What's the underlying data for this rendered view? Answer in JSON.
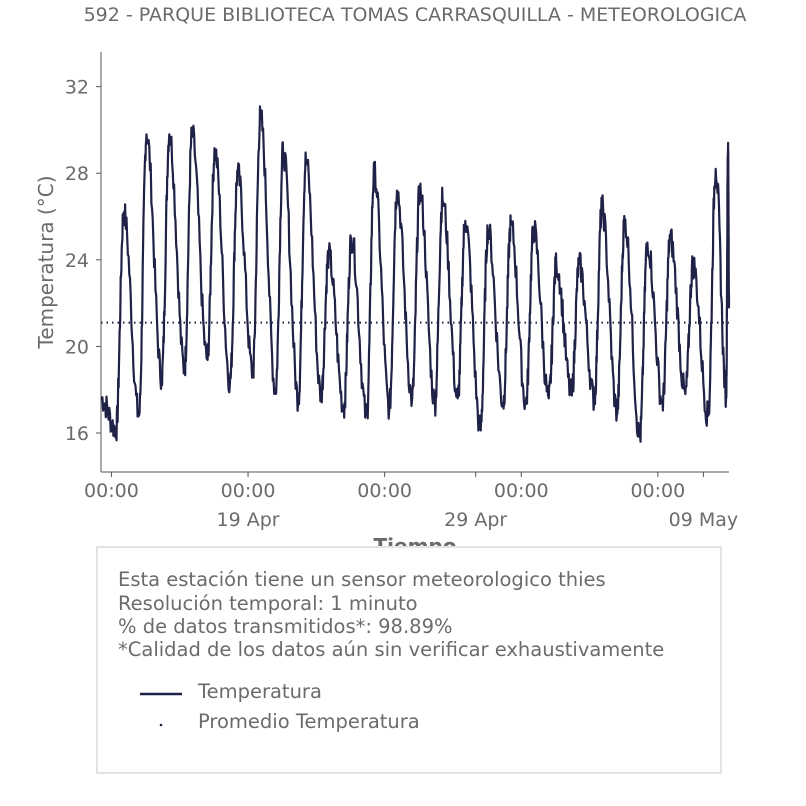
{
  "chart_data": {
    "type": "line",
    "title": "592 - PARQUE BIBLIOTECA TOMAS CARRASQUILLA - METEOROLOGICA",
    "xlabel": "Tiempo",
    "ylabel": "Temperatura (°C)",
    "ylim": [
      14.2,
      33.6
    ],
    "yticks": [
      16,
      20,
      24,
      28,
      32
    ],
    "x_range": [
      "2021-04-12T13:00",
      "2021-05-10T03:00"
    ],
    "x_tick_labels": [
      {
        "x": "2021-04-13T00:00",
        "time": "00:00",
        "date": ""
      },
      {
        "x": "2021-04-19T00:00",
        "time": "00:00",
        "date": "19 Apr"
      },
      {
        "x": "2021-04-25T00:00",
        "time": "00:00",
        "date": ""
      },
      {
        "x": "2021-04-29T00:00",
        "time": "",
        "date": "29 Apr"
      },
      {
        "x": "2021-05-01T00:00",
        "time": "00:00",
        "date": ""
      },
      {
        "x": "2021-05-07T00:00",
        "time": "00:00",
        "date": ""
      },
      {
        "x": "2021-05-09T00:00",
        "time": "",
        "date": "09 May"
      }
    ],
    "grid": false,
    "series": [
      {
        "name": "Temperatura",
        "style": "solid",
        "color": "#1f2147",
        "daily_peaks": [
          {
            "x": "2021-04-13T13:00",
            "y": 26.2
          },
          {
            "x": "2021-04-14T13:00",
            "y": 29.8
          },
          {
            "x": "2021-04-15T13:00",
            "y": 29.8
          },
          {
            "x": "2021-04-16T13:00",
            "y": 29.8
          },
          {
            "x": "2021-04-17T13:00",
            "y": 29.0
          },
          {
            "x": "2021-04-18T13:00",
            "y": 28.0
          },
          {
            "x": "2021-04-19T13:00",
            "y": 30.6
          },
          {
            "x": "2021-04-20T13:00",
            "y": 29.0
          },
          {
            "x": "2021-04-21T13:00",
            "y": 28.6
          },
          {
            "x": "2021-04-22T13:00",
            "y": 24.2
          },
          {
            "x": "2021-04-23T13:00",
            "y": 25.0
          },
          {
            "x": "2021-04-24T13:00",
            "y": 28.0
          },
          {
            "x": "2021-04-25T13:00",
            "y": 27.2
          },
          {
            "x": "2021-04-26T13:00",
            "y": 27.2
          },
          {
            "x": "2021-04-27T13:00",
            "y": 26.8
          },
          {
            "x": "2021-04-28T13:00",
            "y": 25.8
          },
          {
            "x": "2021-04-29T13:00",
            "y": 25.4
          },
          {
            "x": "2021-04-30T13:00",
            "y": 25.6
          },
          {
            "x": "2021-05-01T13:00",
            "y": 25.4
          },
          {
            "x": "2021-05-02T13:00",
            "y": 23.8
          },
          {
            "x": "2021-05-03T13:00",
            "y": 23.8
          },
          {
            "x": "2021-05-04T13:00",
            "y": 26.4
          },
          {
            "x": "2021-05-05T13:00",
            "y": 25.8
          },
          {
            "x": "2021-05-06T13:00",
            "y": 24.8
          },
          {
            "x": "2021-05-07T13:00",
            "y": 25.0
          },
          {
            "x": "2021-05-08T13:00",
            "y": 23.8
          },
          {
            "x": "2021-05-09T13:00",
            "y": 28.2
          },
          {
            "x": "2021-05-10T02:00",
            "y": 29.4
          }
        ],
        "daily_minima": [
          {
            "x": "2021-04-13T05:00",
            "y": 16.2
          },
          {
            "x": "2021-04-14T05:00",
            "y": 16.8
          },
          {
            "x": "2021-04-15T05:00",
            "y": 18.6
          },
          {
            "x": "2021-04-16T05:00",
            "y": 19.0
          },
          {
            "x": "2021-04-17T05:00",
            "y": 19.4
          },
          {
            "x": "2021-04-18T05:00",
            "y": 18.4
          },
          {
            "x": "2021-04-19T05:00",
            "y": 18.8
          },
          {
            "x": "2021-04-20T05:00",
            "y": 18.0
          },
          {
            "x": "2021-04-21T05:00",
            "y": 17.6
          },
          {
            "x": "2021-04-22T05:00",
            "y": 17.8
          },
          {
            "x": "2021-04-23T05:00",
            "y": 17.2
          },
          {
            "x": "2021-04-24T05:00",
            "y": 16.8
          },
          {
            "x": "2021-04-25T05:00",
            "y": 17.2
          },
          {
            "x": "2021-04-26T05:00",
            "y": 17.6
          },
          {
            "x": "2021-04-27T05:00",
            "y": 17.4
          },
          {
            "x": "2021-04-28T05:00",
            "y": 17.6
          },
          {
            "x": "2021-04-29T05:00",
            "y": 16.2
          },
          {
            "x": "2021-04-30T05:00",
            "y": 17.4
          },
          {
            "x": "2021-05-01T05:00",
            "y": 17.4
          },
          {
            "x": "2021-05-02T05:00",
            "y": 17.6
          },
          {
            "x": "2021-05-03T05:00",
            "y": 17.8
          },
          {
            "x": "2021-05-04T05:00",
            "y": 17.6
          },
          {
            "x": "2021-05-05T05:00",
            "y": 17.0
          },
          {
            "x": "2021-05-06T05:00",
            "y": 15.8
          },
          {
            "x": "2021-05-07T05:00",
            "y": 17.4
          },
          {
            "x": "2021-05-08T05:00",
            "y": 17.8
          },
          {
            "x": "2021-05-09T05:00",
            "y": 16.8
          },
          {
            "x": "2021-05-10T00:00",
            "y": 17.8
          }
        ]
      },
      {
        "name": "Promedio Temperatura",
        "style": "dotted",
        "color": "#1f2147",
        "y": 21.1
      }
    ]
  },
  "info": {
    "line1": "Esta estación tiene un sensor meteorologico thies",
    "line2": "Resolución temporal: 1 minuto",
    "line3": "% de datos transmitidos*: 98.89%",
    "line4": "*Calidad de los datos aún sin verificar exhaustivamente"
  },
  "legend": {
    "item1": "Temperatura",
    "item2": "Promedio Temperatura"
  },
  "colors": {
    "series": "#1f2147",
    "text": "#6b6b6b",
    "axis": "#555555",
    "box_border": "#e4e4e4"
  }
}
